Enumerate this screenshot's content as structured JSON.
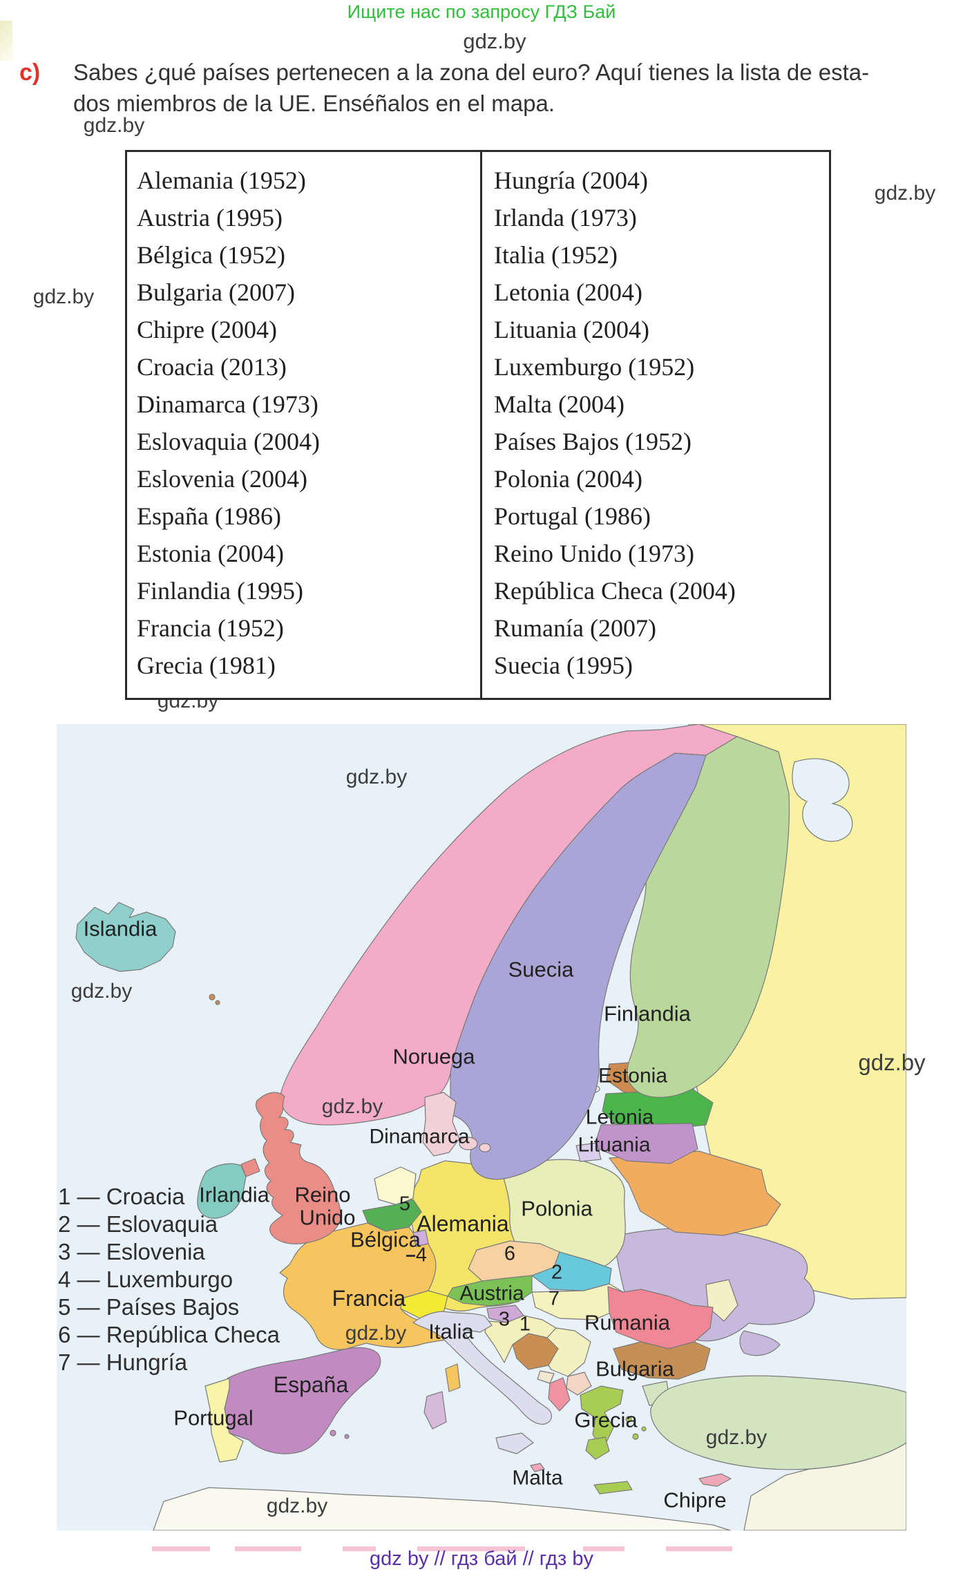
{
  "page": {
    "promo": "Ищите нас по запросу ГДЗ Бай",
    "watermark": "gdz.by",
    "footer": "gdz by  //  гдз бай  //  гдз by"
  },
  "task": {
    "label": "c)",
    "line1": "Sabes ¿qué países pertenecen a la zona del euro? Aquí tienes la lista de esta-",
    "line2": "dos miembros de la UE. Enséñalos en el mapa."
  },
  "table": {
    "left_column": [
      "Alemania (1952)",
      "Austria (1995)",
      "Bélgica (1952)",
      "Bulgaria (2007)",
      "Chipre (2004)",
      "Croacia (2013)",
      "Dinamarca (1973)",
      "Eslovaquia (2004)",
      "Eslovenia (2004)",
      "España (1986)",
      "Estonia (2004)",
      "Finlandia (1995)",
      "Francia (1952)",
      "Grecia (1981)"
    ],
    "right_column": [
      "Hungría (2004)",
      "Irlanda (1973)",
      "Italia (1952)",
      "Letonia (2004)",
      "Lituania (2004)",
      "Luxemburgo (1952)",
      "Malta (2004)",
      "Países Bajos (1952)",
      "Polonia (2004)",
      "Portugal (1986)",
      "Reino Unido (1973)",
      "República Checa (2004)",
      "Rumanía (2007)",
      "Suecia (1995)"
    ]
  },
  "map": {
    "legend": [
      "1 — Croacia",
      "2 — Eslovaquia",
      "3 — Eslovenia",
      "4 — Luxemburgo",
      "5 — Países Bajos",
      "6 — República Checa",
      "7 — Hungría"
    ],
    "labels": {
      "islandia": "Islandia",
      "noruega": "Noruega",
      "suecia": "Suecia",
      "finlandia": "Finlandia",
      "estonia": "Estonia",
      "letonia": "Letonia",
      "lituania": "Lituania",
      "dinamarca": "Dinamarca",
      "irlandia": "Irlandia",
      "reino": "Reino",
      "unido": "Unido",
      "belgica": "Bélgica",
      "alemania": "Alemania",
      "polonia": "Polonia",
      "austria": "Austria",
      "francia": "Francia",
      "italia": "Italia",
      "espana": "España",
      "portugal": "Portugal",
      "rumania": "Rumania",
      "bulgaria": "Bulgaria",
      "grecia": "Grecia",
      "malta": "Malta",
      "chipre": "Chipre"
    },
    "markers": {
      "m1": "1",
      "m2": "2",
      "m3": "3",
      "m4": "4",
      "m5": "5",
      "m6": "6",
      "m7": "7"
    },
    "colors": {
      "sea": "#e8f1f8",
      "russia": "#f8f2a2",
      "turkey": "#d3e5c0",
      "mideast": "#f6f4e3",
      "africa": "#fafaf0",
      "ukraine": "#c7b9de",
      "belarus": "#f1ac60",
      "moldova": "#f3efc7",
      "poland": "#e7eeb8",
      "germany": "#f4e468",
      "czech": "#f6d1a1",
      "slovakia": "#67c7db",
      "hungary": "#f6f2bd",
      "austria": "#7ac255",
      "switzerland": "#f3ea35",
      "slovenia": "#cfa8d6",
      "croatia": "#f4f0bb",
      "bosnia": "#ca8e53",
      "serbia": "#f4f0c2",
      "montenegro": "#f1e7d3",
      "albania": "#ef93a2",
      "macedonia": "#f1d7c3",
      "romania": "#f08795",
      "bulgaria": "#c58f55",
      "greece": "#a9cd53",
      "estonia": "#ce8b4f",
      "estonia_islands": "#efe9dd",
      "latvia": "#4bb54b",
      "lithuania": "#c094cb",
      "kaliningrad": "#d9cdec",
      "finland": "#bad79c",
      "sweden": "#aaa4d7",
      "norway": "#f3abc7",
      "denmark": "#f2d0d7",
      "netherlands": "#fcf9d0",
      "belgium": "#54af55",
      "luxembourg": "#cfaede",
      "france": "#f7c55e",
      "italy": "#dddded",
      "sardinia": "#d6bad9",
      "spain": "#c18ac1",
      "portugal": "#f8f4a9",
      "uk": "#eb8d87",
      "ireland": "#84cbc2",
      "malta": "#f0a9b9",
      "cyprus": "#f0a9b9",
      "iceland": "#8fd0cc",
      "faroe": "#ca8e53"
    }
  }
}
